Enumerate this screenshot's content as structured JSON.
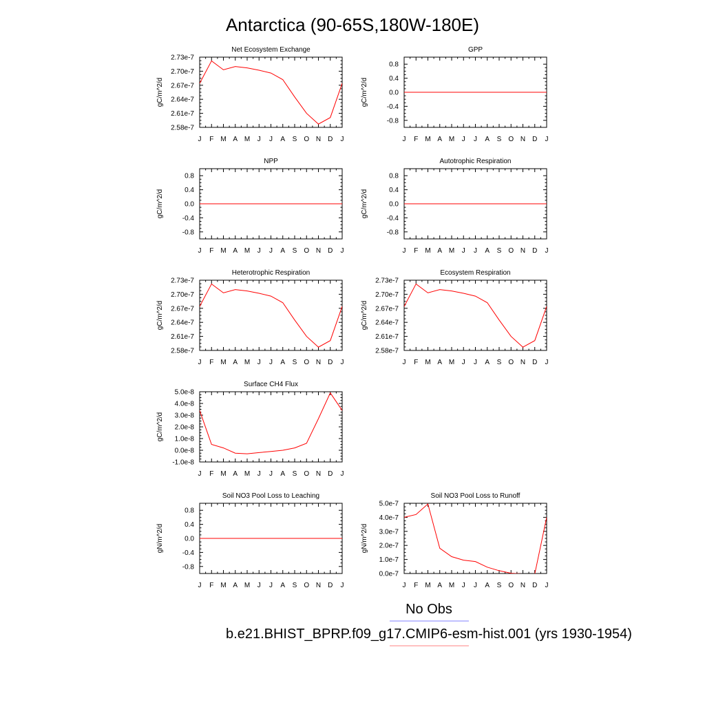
{
  "figure": {
    "title": "Antarctica (90-65S,180W-180E)",
    "legend": [
      {
        "label": "No Obs",
        "color": "#8080ff"
      },
      {
        "label": "b.e21.BHIST_BPRP.f09_g17.CMIP6-esm-hist.001 (yrs 1930-1954)",
        "color": "#ff8080"
      }
    ],
    "line_color": "#ff0000"
  },
  "chart_data": [
    {
      "type": "line",
      "title": "Net Ecosystem Exchange",
      "ylabel": "gC/m^2/d",
      "xlabel": "",
      "categories": [
        "J",
        "F",
        "M",
        "A",
        "M",
        "J",
        "J",
        "A",
        "S",
        "O",
        "N",
        "D",
        "J"
      ],
      "ylim": [
        2.58e-07,
        2.73e-07
      ],
      "yticks": [
        2.58e-07,
        2.61e-07,
        2.64e-07,
        2.67e-07,
        2.7e-07,
        2.73e-07
      ],
      "yticklabels": [
        "2.58e-7",
        "2.61e-7",
        "2.64e-7",
        "2.67e-7",
        "2.70e-7",
        "2.73e-7"
      ],
      "series": [
        {
          "values": [
            2.674e-07,
            2.722e-07,
            2.703e-07,
            2.71e-07,
            2.707e-07,
            2.702e-07,
            2.696e-07,
            2.682e-07,
            2.645e-07,
            2.61e-07,
            2.587e-07,
            2.601e-07,
            2.674e-07
          ]
        }
      ]
    },
    {
      "type": "line",
      "title": "GPP",
      "ylabel": "gC/m^2/d",
      "xlabel": "",
      "categories": [
        "J",
        "F",
        "M",
        "A",
        "M",
        "J",
        "J",
        "A",
        "S",
        "O",
        "N",
        "D",
        "J"
      ],
      "ylim": [
        -1.0,
        1.0
      ],
      "yticks": [
        -0.8,
        -0.4,
        0.0,
        0.4,
        0.8
      ],
      "yticklabels": [
        "-0.8",
        "-0.4",
        "0.0",
        "0.4",
        "0.8"
      ],
      "series": [
        {
          "values": [
            0,
            0,
            0,
            0,
            0,
            0,
            0,
            0,
            0,
            0,
            0,
            0,
            0
          ]
        }
      ]
    },
    {
      "type": "line",
      "title": "NPP",
      "ylabel": "gC/m^2/d",
      "xlabel": "",
      "categories": [
        "J",
        "F",
        "M",
        "A",
        "M",
        "J",
        "J",
        "A",
        "S",
        "O",
        "N",
        "D",
        "J"
      ],
      "ylim": [
        -1.0,
        1.0
      ],
      "yticks": [
        -0.8,
        -0.4,
        0.0,
        0.4,
        0.8
      ],
      "yticklabels": [
        "-0.8",
        "-0.4",
        "0.0",
        "0.4",
        "0.8"
      ],
      "series": [
        {
          "values": [
            0,
            0,
            0,
            0,
            0,
            0,
            0,
            0,
            0,
            0,
            0,
            0,
            0
          ]
        }
      ]
    },
    {
      "type": "line",
      "title": "Autotrophic Respiration",
      "ylabel": "gC/m^2/d",
      "xlabel": "",
      "categories": [
        "J",
        "F",
        "M",
        "A",
        "M",
        "J",
        "J",
        "A",
        "S",
        "O",
        "N",
        "D",
        "J"
      ],
      "ylim": [
        -1.0,
        1.0
      ],
      "yticks": [
        -0.8,
        -0.4,
        0.0,
        0.4,
        0.8
      ],
      "yticklabels": [
        "-0.8",
        "-0.4",
        "0.0",
        "0.4",
        "0.8"
      ],
      "series": [
        {
          "values": [
            0,
            0,
            0,
            0,
            0,
            0,
            0,
            0,
            0,
            0,
            0,
            0,
            0
          ]
        }
      ]
    },
    {
      "type": "line",
      "title": "Heterotrophic Respiration",
      "ylabel": "gC/m^2/d",
      "xlabel": "",
      "categories": [
        "J",
        "F",
        "M",
        "A",
        "M",
        "J",
        "J",
        "A",
        "S",
        "O",
        "N",
        "D",
        "J"
      ],
      "ylim": [
        2.58e-07,
        2.73e-07
      ],
      "yticks": [
        2.58e-07,
        2.61e-07,
        2.64e-07,
        2.67e-07,
        2.7e-07,
        2.73e-07
      ],
      "yticklabels": [
        "2.58e-7",
        "2.61e-7",
        "2.64e-7",
        "2.67e-7",
        "2.70e-7",
        "2.73e-7"
      ],
      "series": [
        {
          "values": [
            2.674e-07,
            2.722e-07,
            2.703e-07,
            2.71e-07,
            2.707e-07,
            2.702e-07,
            2.696e-07,
            2.682e-07,
            2.645e-07,
            2.61e-07,
            2.587e-07,
            2.601e-07,
            2.674e-07
          ]
        }
      ]
    },
    {
      "type": "line",
      "title": "Ecosystem Respiration",
      "ylabel": "gC/m^2/d",
      "xlabel": "",
      "categories": [
        "J",
        "F",
        "M",
        "A",
        "M",
        "J",
        "J",
        "A",
        "S",
        "O",
        "N",
        "D",
        "J"
      ],
      "ylim": [
        2.58e-07,
        2.73e-07
      ],
      "yticks": [
        2.58e-07,
        2.61e-07,
        2.64e-07,
        2.67e-07,
        2.7e-07,
        2.73e-07
      ],
      "yticklabels": [
        "2.58e-7",
        "2.61e-7",
        "2.64e-7",
        "2.67e-7",
        "2.70e-7",
        "2.73e-7"
      ],
      "series": [
        {
          "values": [
            2.674e-07,
            2.722e-07,
            2.703e-07,
            2.71e-07,
            2.707e-07,
            2.702e-07,
            2.696e-07,
            2.682e-07,
            2.645e-07,
            2.61e-07,
            2.587e-07,
            2.601e-07,
            2.674e-07
          ]
        }
      ]
    },
    {
      "type": "line",
      "title": "Surface CH4 Flux",
      "ylabel": "gC/m^2/d",
      "xlabel": "",
      "categories": [
        "J",
        "F",
        "M",
        "A",
        "M",
        "J",
        "J",
        "A",
        "S",
        "O",
        "N",
        "D",
        "J"
      ],
      "ylim": [
        -1e-08,
        5e-08
      ],
      "yticks": [
        -1e-08,
        0.0,
        1e-08,
        2e-08,
        3e-08,
        4e-08,
        5e-08
      ],
      "yticklabels": [
        "-1.0e-8",
        "0.0e-8",
        "1.0e-8",
        "2.0e-8",
        "3.0e-8",
        "4.0e-8",
        "5.0e-8"
      ],
      "series": [
        {
          "values": [
            3.4e-08,
            5e-09,
            2e-09,
            -2.5e-09,
            -3e-09,
            -2e-09,
            -1e-09,
            0.0,
            2e-09,
            6e-09,
            2.7e-08,
            4.9e-08,
            3.4e-08
          ]
        }
      ]
    },
    {
      "type": "line",
      "title": "Soil NO3 Pool Loss to Leaching",
      "ylabel": "gN/m^2/d",
      "xlabel": "",
      "categories": [
        "J",
        "F",
        "M",
        "A",
        "M",
        "J",
        "J",
        "A",
        "S",
        "O",
        "N",
        "D",
        "J"
      ],
      "ylim": [
        -1.0,
        1.0
      ],
      "yticks": [
        -0.8,
        -0.4,
        0.0,
        0.4,
        0.8
      ],
      "yticklabels": [
        "-0.8",
        "-0.4",
        "0.0",
        "0.4",
        "0.8"
      ],
      "series": [
        {
          "values": [
            0,
            0,
            0,
            0,
            0,
            0,
            0,
            0,
            0,
            0,
            0,
            0,
            0
          ]
        }
      ]
    },
    {
      "type": "line",
      "title": "Soil NO3 Pool Loss to Runoff",
      "ylabel": "gN/m^2/d",
      "xlabel": "",
      "categories": [
        "J",
        "F",
        "M",
        "A",
        "M",
        "J",
        "J",
        "A",
        "S",
        "O",
        "N",
        "D",
        "J"
      ],
      "ylim": [
        0.0,
        5e-07
      ],
      "yticks": [
        0.0,
        1e-07,
        2e-07,
        3e-07,
        4e-07,
        5e-07
      ],
      "yticklabels": [
        "0.0e-7",
        "1.0e-7",
        "2.0e-7",
        "3.0e-7",
        "4.0e-7",
        "5.0e-7"
      ],
      "series": [
        {
          "values": [
            4e-07,
            4.2e-07,
            4.95e-07,
            1.8e-07,
            1.2e-07,
            9.5e-08,
            8.5e-08,
            4.5e-08,
            2e-08,
            2e-09,
            -3e-09,
            -3e-09,
            4e-07
          ]
        }
      ]
    }
  ]
}
